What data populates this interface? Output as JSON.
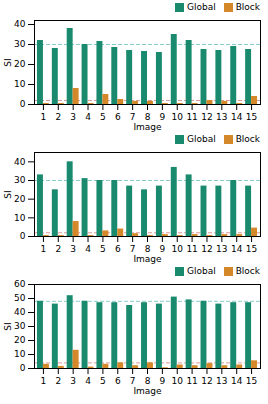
{
  "chart_data": [
    {
      "type": "bar",
      "categories": [
        "1",
        "2",
        "3",
        "4",
        "5",
        "6",
        "7",
        "8",
        "9",
        "10",
        "11",
        "12",
        "13",
        "14",
        "15"
      ],
      "series": [
        {
          "name": "Global",
          "color": "#1a8a6e",
          "values": [
            32,
            28,
            38,
            30,
            31.5,
            28.5,
            27,
            26.5,
            26,
            35,
            32,
            27.5,
            27,
            29,
            27.5
          ]
        },
        {
          "name": "Block",
          "color": "#d4882a",
          "values": [
            0.5,
            0.5,
            8,
            0.5,
            5,
            2.5,
            1.5,
            1.5,
            0.5,
            0.5,
            0.5,
            2,
            1.5,
            0.5,
            4
          ]
        }
      ],
      "ylim": [
        0,
        42
      ],
      "yticks": [
        0,
        10,
        20,
        30,
        40
      ],
      "xlabel": "Image",
      "ylabel": "SI",
      "hlines": [
        {
          "value": 30,
          "color": "#88cccc",
          "line_style": "dashed"
        },
        {
          "value": 2,
          "color": "#dd9999",
          "line_style": "dashed"
        }
      ],
      "legend": "upper right",
      "grid": false
    },
    {
      "type": "bar",
      "categories": [
        "1",
        "2",
        "3",
        "4",
        "5",
        "6",
        "7",
        "8",
        "9",
        "10",
        "11",
        "12",
        "13",
        "14",
        "15"
      ],
      "series": [
        {
          "name": "Global",
          "color": "#1a8a6e",
          "values": [
            33,
            25,
            40,
            31,
            30,
            30,
            27,
            25,
            27,
            37,
            33,
            27,
            27,
            30,
            27
          ]
        },
        {
          "name": "Block",
          "color": "#d4882a",
          "values": [
            0.5,
            0.5,
            8,
            0.5,
            3,
            4,
            1.5,
            0.5,
            1,
            0.5,
            1,
            0.5,
            1,
            1,
            4.5
          ]
        }
      ],
      "ylim": [
        0,
        45
      ],
      "yticks": [
        0,
        10,
        20,
        30,
        40
      ],
      "xlabel": "Image",
      "ylabel": "SI",
      "hlines": [
        {
          "value": 30,
          "color": "#88cccc",
          "line_style": "dashed"
        },
        {
          "value": 2,
          "color": "#dd9999",
          "line_style": "dashed"
        }
      ],
      "legend": "upper right",
      "grid": false
    },
    {
      "type": "bar",
      "categories": [
        "1",
        "2",
        "3",
        "4",
        "5",
        "6",
        "7",
        "8",
        "9",
        "10",
        "11",
        "12",
        "13",
        "14",
        "15"
      ],
      "series": [
        {
          "name": "Global",
          "color": "#1a8a6e",
          "values": [
            48,
            46,
            52,
            48,
            47,
            47,
            45,
            47,
            46,
            51,
            49,
            48,
            46,
            47,
            47
          ]
        },
        {
          "name": "Block",
          "color": "#d4882a",
          "values": [
            3,
            1.5,
            13,
            1,
            3,
            4,
            2,
            4,
            0.5,
            2.5,
            2,
            3.5,
            2,
            2.5,
            5.5
          ]
        }
      ],
      "ylim": [
        0,
        60
      ],
      "yticks": [
        0,
        10,
        20,
        30,
        40,
        50,
        60
      ],
      "xlabel": "Image",
      "ylabel": "SI",
      "hlines": [
        {
          "value": 48,
          "color": "#88cccc",
          "line_style": "dashed"
        },
        {
          "value": 4,
          "color": "#dd9999",
          "line_style": "dashed"
        }
      ],
      "legend": "upper right",
      "grid": false
    }
  ]
}
